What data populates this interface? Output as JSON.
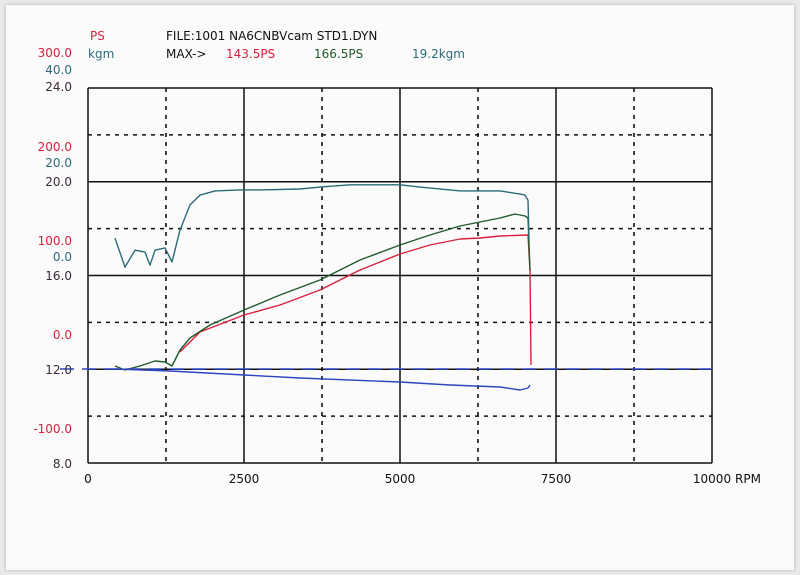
{
  "header": {
    "ps_unit": "PS",
    "kgm_unit": "kgm",
    "file": "FILE:1001 NA6CNBVcam STD1.DYN",
    "max_label": "MAX->",
    "max_ps_red": "143.5PS",
    "max_ps_green": "166.5PS",
    "max_kgm": "19.2kgm"
  },
  "colors": {
    "red": "#d8203c",
    "green": "#1f5a2a",
    "teal": "#2b6b78",
    "blue": "#2c46c0",
    "dark": "#3a2838"
  },
  "chart_data": {
    "type": "line",
    "title": "FILE:1001 NA6CNBVcam STD1.DYN",
    "xlabel": "RPM",
    "xlim": [
      0,
      10000
    ],
    "x_ticks": [
      "0",
      "2500",
      "5000",
      "7500",
      "10000"
    ],
    "grid": true,
    "left_axes": {
      "ps_labels": [
        "300.0",
        "200.0",
        "100.0",
        "0.0",
        "-100.0"
      ],
      "kgm_labels": [
        "40.0",
        "20.0",
        "0.0"
      ],
      "aux_labels": [
        "24.0",
        "20.0",
        "16.0",
        "12.0",
        "8.0"
      ]
    },
    "ps_range": [
      -100,
      300
    ],
    "kgm_range": [
      0,
      40
    ],
    "series": [
      {
        "name": "power-red",
        "unit": "PS",
        "color": "red",
        "x": [
          1474,
          1795,
          2500,
          3077,
          3718,
          4038,
          4359,
          5000,
          5481,
          5962,
          6282,
          6603,
          7051,
          7083,
          7099
        ],
        "y": [
          18.1,
          39.4,
          57.4,
          68.1,
          84,
          94.7,
          105.3,
          122.3,
          131.9,
          138.3,
          139.4,
          141.5,
          142.6,
          105,
          4.3
        ]
      },
      {
        "name": "power-green",
        "unit": "PS",
        "color": "green",
        "x": [
          433,
          593,
          833,
          1074,
          1234,
          1346,
          1474,
          1635,
          1955,
          2500,
          3077,
          3718,
          4038,
          4359,
          5000,
          5481,
          5962,
          6282,
          6603,
          6843,
          7003,
          7051,
          7083
        ],
        "y": [
          3.2,
          -1.1,
          3.2,
          8.5,
          7.4,
          3.2,
          20.2,
          33,
          46.8,
          62.8,
          78.7,
          94.7,
          105.3,
          116,
          131.9,
          142.6,
          152.1,
          156.4,
          160.6,
          164.9,
          162.8,
          160.6,
          105
        ]
      },
      {
        "name": "torque-teal",
        "unit": "kgm",
        "color": "teal",
        "x": [
          433,
          593,
          753,
          913,
          994,
          1074,
          1234,
          1346,
          1474,
          1635,
          1795,
          2035,
          2436,
          2756,
          3397,
          3718,
          4199,
          5000,
          5321,
          5962,
          6603,
          6923,
          7003,
          7051,
          7067
        ],
        "y": [
          7.9,
          1.7,
          5.3,
          4.9,
          2.1,
          5.3,
          5.8,
          2.8,
          9.6,
          15,
          17.1,
          18,
          18.2,
          18.2,
          18.4,
          18.8,
          19.3,
          19.3,
          18.8,
          18,
          18,
          17.3,
          17.1,
          16,
          7.5
        ]
      },
      {
        "name": "loss-blue",
        "unit": "PS",
        "color": "blue",
        "x": [
          433,
          1314,
          2500,
          3397,
          5000,
          5801,
          6603,
          6923,
          7051,
          7083
        ],
        "y": [
          0,
          -2.1,
          -6.4,
          -9.6,
          -13.8,
          -17,
          -19.1,
          -22.3,
          -20.2,
          -17
        ]
      },
      {
        "name": "zero-reference-dashed",
        "unit": "PS",
        "color": "blue",
        "dashed": true,
        "x": [
          0,
          10000
        ],
        "y": [
          0,
          0
        ]
      }
    ]
  }
}
